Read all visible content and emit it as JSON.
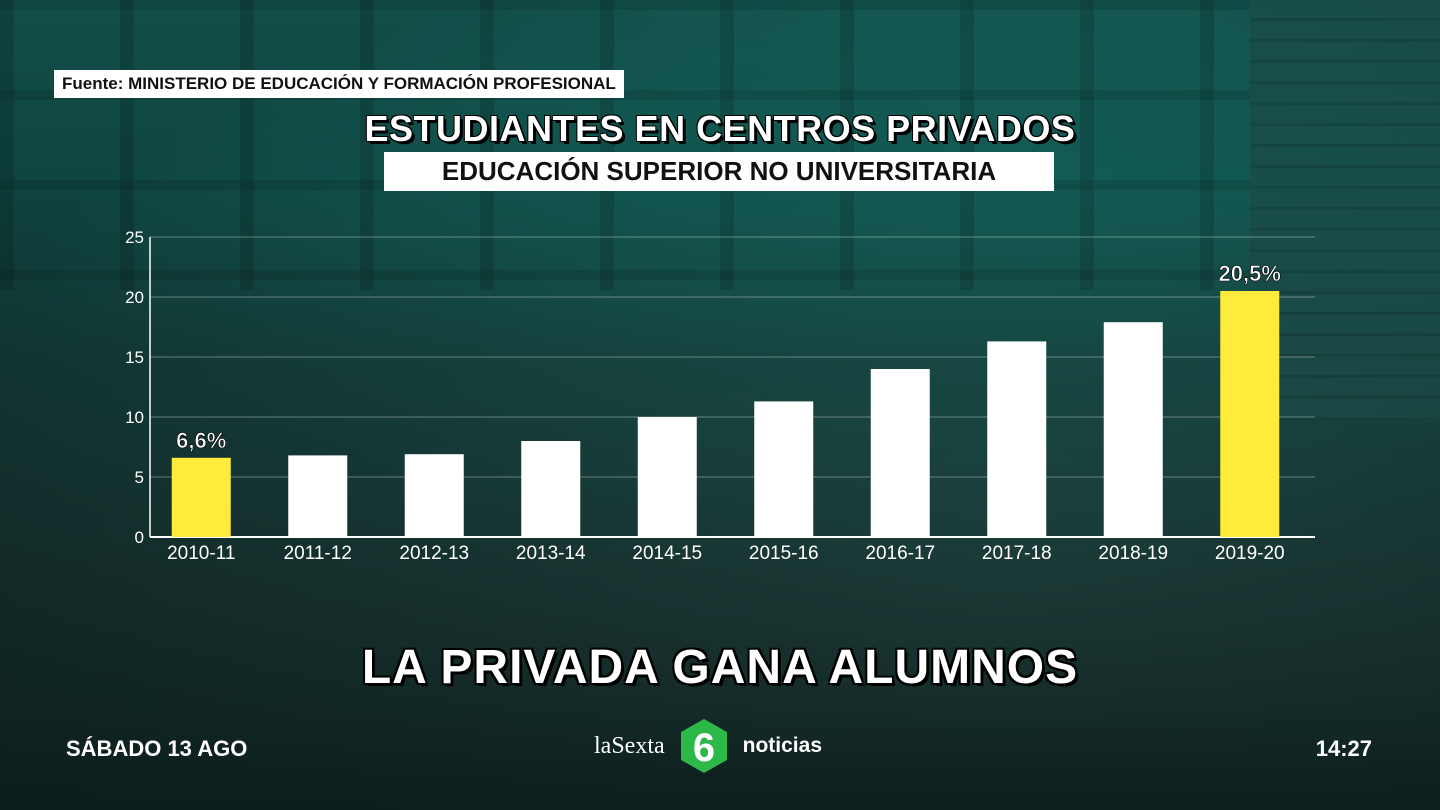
{
  "source": "Fuente: MINISTERIO DE EDUCACIÓN Y FORMACIÓN PROFESIONAL",
  "headline": "LA PRIVADA GANA ALUMNOS",
  "footer": {
    "date": "SÁBADO 13 AGO",
    "time": "14:27",
    "channel": "laSexta",
    "program": "noticias",
    "logo_char": "6"
  },
  "colors": {
    "highlight": "#ffeb3b",
    "bar": "#ffffff",
    "logo_green": "#2db84a"
  },
  "chart_data": {
    "type": "bar",
    "title": "ESTUDIANTES EN CENTROS PRIVADOS",
    "subtitle": "EDUCACIÓN SUPERIOR NO UNIVERSITARIA",
    "categories": [
      "2010-11",
      "2011-12",
      "2012-13",
      "2013-14",
      "2014-15",
      "2015-16",
      "2016-17",
      "2017-18",
      "2018-19",
      "2019-20"
    ],
    "values": [
      6.6,
      6.8,
      6.9,
      8.0,
      10.0,
      11.3,
      14.0,
      16.3,
      17.9,
      20.5
    ],
    "highlighted": [
      true,
      false,
      false,
      false,
      false,
      false,
      false,
      false,
      false,
      true
    ],
    "data_labels": [
      "6,6%",
      "",
      "",
      "",
      "",
      "",
      "",
      "",
      "",
      "20,5%"
    ],
    "ylim": [
      0,
      25
    ],
    "yticks": [
      0,
      5,
      10,
      15,
      20,
      25
    ],
    "grid": true,
    "xlabel": "",
    "ylabel": ""
  }
}
